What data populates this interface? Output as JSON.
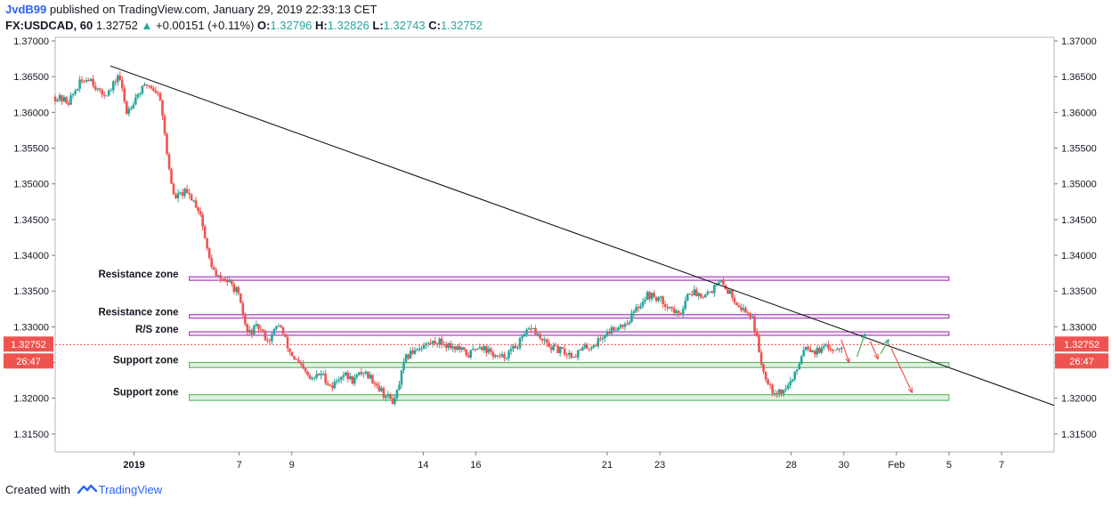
{
  "header": {
    "author": "JvdB99",
    "published_text": "published on TradingView.com, January 29, 2019 22:33:13 CET",
    "symbol": "FX:USDCAD, 60",
    "price": "1.32752",
    "change": "+0.00151 (+0.11%)",
    "open_label": "O:",
    "open": "1.32796",
    "high_label": "H:",
    "high": "1.32826",
    "low_label": "L:",
    "low": "1.32743",
    "close_label": "C:",
    "close": "1.32752"
  },
  "footer": {
    "created_with": "Created with",
    "brand": "TradingView"
  },
  "colors": {
    "up": "#26a69a",
    "down": "#ef5350",
    "resistance_zone": "#9c27b0",
    "support_zone": "#4caf50",
    "price_line": "#ef5350",
    "axis_text": "#131722"
  },
  "chart_data": {
    "type": "candlestick",
    "ylim": [
      1.3125,
      1.3705
    ],
    "x_day_range": [
      0,
      38
    ],
    "y_ticks": [
      "1.37000",
      "1.36500",
      "1.36000",
      "1.35500",
      "1.35000",
      "1.34500",
      "1.34000",
      "1.33500",
      "1.33000",
      "1.32500",
      "1.32000",
      "1.31500"
    ],
    "x_ticks": [
      {
        "label": "2019",
        "day": 3
      },
      {
        "label": "7",
        "day": 7
      },
      {
        "label": "9",
        "day": 9
      },
      {
        "label": "14",
        "day": 14
      },
      {
        "label": "16",
        "day": 16
      },
      {
        "label": "21",
        "day": 21
      },
      {
        "label": "23",
        "day": 23
      },
      {
        "label": "28",
        "day": 28
      },
      {
        "label": "30",
        "day": 30
      },
      {
        "label": "Feb",
        "day": 32
      },
      {
        "label": "5",
        "day": 34
      },
      {
        "label": "7",
        "day": 36
      }
    ],
    "price_series": [
      [
        0.0,
        1.3622
      ],
      [
        0.6,
        1.3615
      ],
      [
        1.0,
        1.364
      ],
      [
        1.4,
        1.365
      ],
      [
        1.8,
        1.3625
      ],
      [
        2.2,
        1.363
      ],
      [
        2.5,
        1.3655
      ],
      [
        2.8,
        1.36
      ],
      [
        3.2,
        1.3625
      ],
      [
        3.6,
        1.364
      ],
      [
        3.9,
        1.363
      ],
      [
        4.1,
        1.362
      ],
      [
        4.3,
        1.355
      ],
      [
        4.6,
        1.348
      ],
      [
        5.0,
        1.3488
      ],
      [
        5.3,
        1.348
      ],
      [
        5.6,
        1.346
      ],
      [
        5.9,
        1.34
      ],
      [
        6.2,
        1.337
      ],
      [
        6.6,
        1.3365
      ],
      [
        7.0,
        1.335
      ],
      [
        7.4,
        1.329
      ],
      [
        7.8,
        1.33
      ],
      [
        8.2,
        1.328
      ],
      [
        8.6,
        1.3305
      ],
      [
        9.0,
        1.3265
      ],
      [
        9.4,
        1.3245
      ],
      [
        9.8,
        1.3225
      ],
      [
        10.2,
        1.3235
      ],
      [
        10.6,
        1.3215
      ],
      [
        11.0,
        1.3235
      ],
      [
        11.4,
        1.3225
      ],
      [
        11.8,
        1.3238
      ],
      [
        12.2,
        1.3225
      ],
      [
        12.6,
        1.3205
      ],
      [
        13.0,
        1.3195
      ],
      [
        13.4,
        1.3255
      ],
      [
        13.8,
        1.327
      ],
      [
        14.2,
        1.3275
      ],
      [
        14.6,
        1.328
      ],
      [
        15.0,
        1.3275
      ],
      [
        15.4,
        1.327
      ],
      [
        15.8,
        1.326
      ],
      [
        16.2,
        1.3275
      ],
      [
        16.6,
        1.3265
      ],
      [
        17.0,
        1.3255
      ],
      [
        17.4,
        1.3265
      ],
      [
        17.8,
        1.328
      ],
      [
        18.2,
        1.33
      ],
      [
        18.6,
        1.328
      ],
      [
        19.0,
        1.327
      ],
      [
        19.4,
        1.3265
      ],
      [
        19.8,
        1.326
      ],
      [
        20.2,
        1.327
      ],
      [
        20.6,
        1.3275
      ],
      [
        21.0,
        1.329
      ],
      [
        21.4,
        1.33
      ],
      [
        21.8,
        1.3305
      ],
      [
        22.2,
        1.3325
      ],
      [
        22.6,
        1.3345
      ],
      [
        23.0,
        1.334
      ],
      [
        23.4,
        1.333
      ],
      [
        23.8,
        1.3315
      ],
      [
        24.2,
        1.335
      ],
      [
        24.6,
        1.3345
      ],
      [
        25.0,
        1.335
      ],
      [
        25.4,
        1.3362
      ],
      [
        25.8,
        1.3345
      ],
      [
        26.2,
        1.3325
      ],
      [
        26.6,
        1.3315
      ],
      [
        27.0,
        1.324
      ],
      [
        27.4,
        1.321
      ],
      [
        27.8,
        1.321
      ],
      [
        28.2,
        1.323
      ],
      [
        28.6,
        1.3275
      ],
      [
        29.0,
        1.3265
      ],
      [
        29.4,
        1.327
      ],
      [
        29.8,
        1.327
      ],
      [
        30.0,
        1.3275
      ]
    ],
    "last_price": 1.32752,
    "last_price_label": "1.32752",
    "countdown": "26:47",
    "trendline": [
      [
        2.1,
        1.3665
      ],
      [
        38,
        1.319
      ]
    ],
    "zones": [
      {
        "label": "Resistance zone",
        "kind": "resistance",
        "low": 1.3365,
        "high": 1.337,
        "from_day": 5.1,
        "to_day": 34
      },
      {
        "label": "Resistance zone",
        "kind": "resistance",
        "low": 1.3312,
        "high": 1.3317,
        "from_day": 5.1,
        "to_day": 34
      },
      {
        "label": "R/S zone",
        "kind": "resistance",
        "low": 1.3288,
        "high": 1.3293,
        "from_day": 5.1,
        "to_day": 34
      },
      {
        "label": "Support zone",
        "kind": "support",
        "low": 1.3243,
        "high": 1.325,
        "from_day": 5.1,
        "to_day": 34
      },
      {
        "label": "Support zone",
        "kind": "support",
        "low": 1.3197,
        "high": 1.3205,
        "from_day": 5.1,
        "to_day": 34
      }
    ],
    "projection_arrows": [
      {
        "from": [
          29.9,
          1.3282
        ],
        "to": [
          30.2,
          1.325
        ],
        "direction": "down"
      },
      {
        "from": [
          30.5,
          1.3258
        ],
        "to": [
          30.8,
          1.329
        ],
        "direction": "up"
      },
      {
        "from": [
          31.0,
          1.328
        ],
        "to": [
          31.3,
          1.3255
        ],
        "direction": "down"
      },
      {
        "from": [
          31.4,
          1.3262
        ],
        "to": [
          31.7,
          1.3282
        ],
        "direction": "up"
      },
      {
        "from": [
          31.8,
          1.327
        ],
        "to": [
          32.6,
          1.3208
        ],
        "direction": "down"
      }
    ]
  }
}
